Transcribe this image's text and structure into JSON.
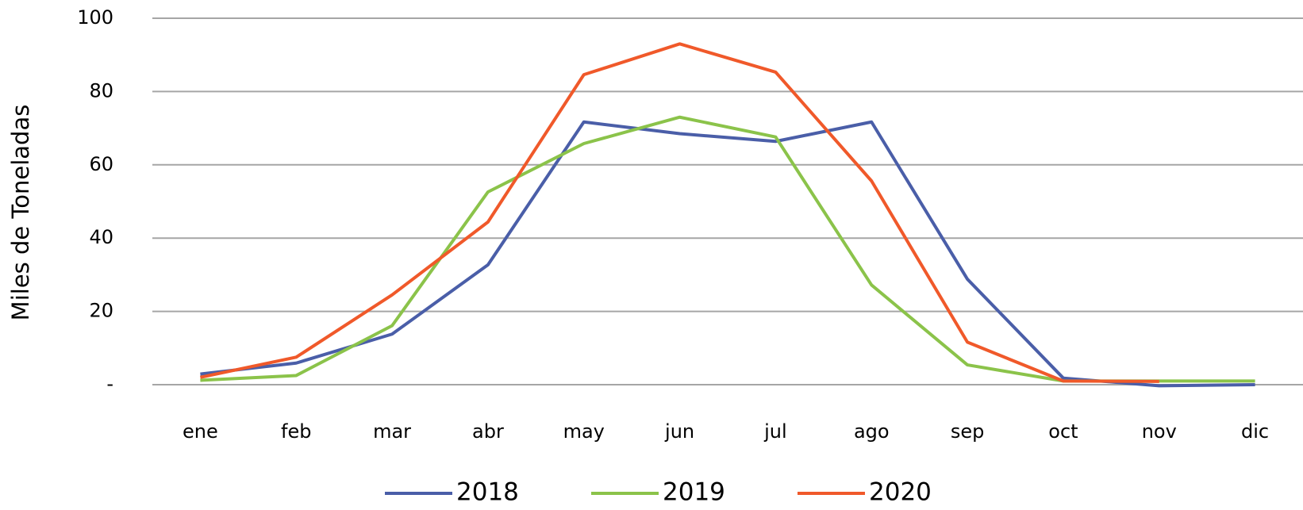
{
  "chart_data": {
    "type": "line",
    "y_label": "Miles de Toneladas",
    "categories": [
      "ene",
      "feb",
      "mar",
      "abr",
      "may",
      "jun",
      "jul",
      "ago",
      "sep",
      "oct",
      "nov",
      "dic"
    ],
    "series": [
      {
        "name": "2018",
        "color": "#4a5ea8",
        "values": [
          2.9,
          5.9,
          13.8,
          32.7,
          71.7,
          68.5,
          66.4,
          71.7,
          28.8,
          1.8,
          -0.3,
          0
        ]
      },
      {
        "name": "2019",
        "color": "#8bc34a",
        "values": [
          1.2,
          2.5,
          16.1,
          52.6,
          65.8,
          73,
          67.6,
          27.2,
          5.4,
          1,
          1,
          1
        ]
      },
      {
        "name": "2020",
        "color": "#f0592a",
        "values": [
          2,
          7.5,
          24.5,
          44.4,
          84.6,
          93,
          85.3,
          55.6,
          11.6,
          1,
          0.9,
          null
        ]
      }
    ],
    "ylim": [
      0,
      100
    ],
    "yticks": [
      {
        "value": 0,
        "label": "-"
      },
      20,
      40,
      60,
      80,
      100
    ],
    "grid": true,
    "legend": "bottom"
  }
}
